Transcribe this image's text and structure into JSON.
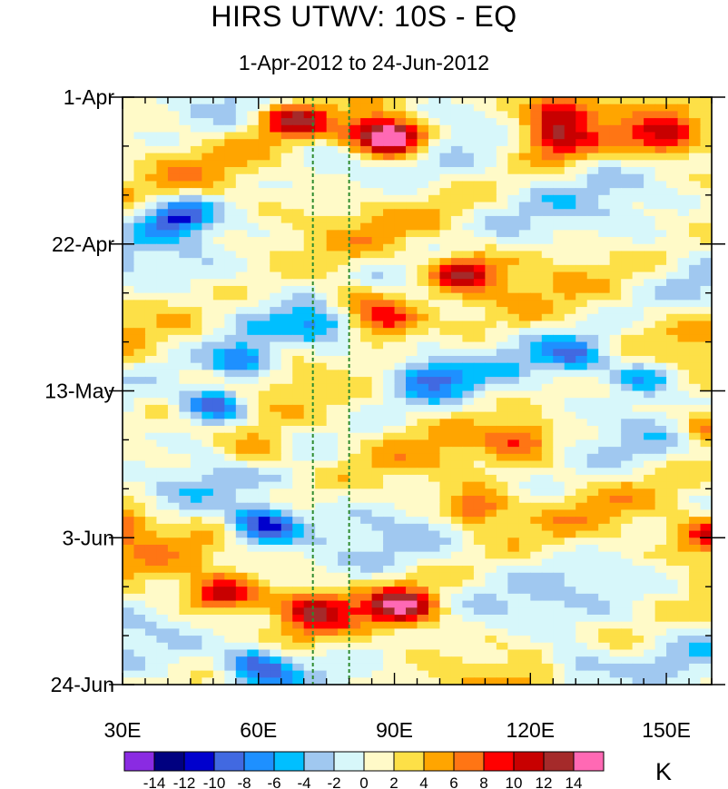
{
  "chart_data": {
    "type": "heatmap",
    "title": "HIRS UTWV: 10S - EQ",
    "subtitle": "1-Apr-2012 to 24-Jun-2012",
    "x_axis": {
      "range": [
        30,
        160
      ],
      "ticks": [
        30,
        60,
        90,
        120,
        150
      ],
      "tick_labels": [
        "30E",
        "60E",
        "90E",
        "120E",
        "150E"
      ]
    },
    "y_axis": {
      "range_days": [
        0,
        84
      ],
      "direction": "downward",
      "ticks": [
        0,
        21,
        42,
        63,
        84
      ],
      "tick_labels": [
        "1-Apr",
        "22-Apr",
        "13-May",
        "3-Jun",
        "24-Jun"
      ]
    },
    "reference_lines": [
      {
        "x": 72,
        "style": "dashed",
        "color": "#2e8b2e"
      },
      {
        "x": 80,
        "style": "dashed",
        "color": "#2e8b2e"
      }
    ],
    "colorbar": {
      "unit": "K",
      "levels": [
        -14,
        -12,
        -10,
        -8,
        -6,
        -4,
        -2,
        0,
        2,
        4,
        6,
        8,
        10,
        12,
        14
      ],
      "label_text": [
        "-14",
        "-12",
        "-10",
        "-8",
        "-6",
        "-4",
        "-2",
        "0",
        "2",
        "4",
        "6",
        "8",
        "10",
        "12",
        "14"
      ],
      "colors": [
        "#8a2be2",
        "#000080",
        "#0000cd",
        "#4169e1",
        "#1e90ff",
        "#00bfff",
        "#a0c8f0",
        "#d7f7fa",
        "#fffac8",
        "#fde047",
        "#ffa500",
        "#ff7514",
        "#ff0000",
        "#c80000",
        "#a52a2a",
        "#ff69b4"
      ]
    },
    "anomaly_features": [
      {
        "lon": 68,
        "day": 3,
        "value": 11
      },
      {
        "lon": 90,
        "day": 6,
        "value": 15
      },
      {
        "lon": 85,
        "day": 5,
        "value": 9
      },
      {
        "lon": 127,
        "day": 2,
        "value": 10
      },
      {
        "lon": 150,
        "day": 6,
        "value": 9
      },
      {
        "lon": 125,
        "day": 6,
        "value": 8
      },
      {
        "lon": 105,
        "day": 25,
        "value": 10
      },
      {
        "lon": 80,
        "day": 29,
        "value": 7
      },
      {
        "lon": 88,
        "day": 32,
        "value": 9
      },
      {
        "lon": 60,
        "day": 51,
        "value": 6
      },
      {
        "lon": 118,
        "day": 49,
        "value": 7
      },
      {
        "lon": 160,
        "day": 47,
        "value": 9
      },
      {
        "lon": 30,
        "day": 61,
        "value": 9
      },
      {
        "lon": 108,
        "day": 59,
        "value": 9
      },
      {
        "lon": 160,
        "day": 63,
        "value": 9
      },
      {
        "lon": 52,
        "day": 71,
        "value": 10
      },
      {
        "lon": 72,
        "day": 73,
        "value": 9
      },
      {
        "lon": 92,
        "day": 73,
        "value": 12
      },
      {
        "lon": 42,
        "day": 17,
        "value": -10
      },
      {
        "lon": 50,
        "day": 44,
        "value": -12
      },
      {
        "lon": 61,
        "day": 61,
        "value": -13
      },
      {
        "lon": 60,
        "day": 81,
        "value": -11
      },
      {
        "lon": 130,
        "day": 37,
        "value": -8
      },
      {
        "lon": 98,
        "day": 40,
        "value": -7
      },
      {
        "lon": 74,
        "day": 33,
        "value": -6
      },
      {
        "lon": 130,
        "day": 81,
        "value": -7
      },
      {
        "lon": 57,
        "day": 38,
        "value": -9
      },
      {
        "lon": 145,
        "day": 40,
        "value": -7
      }
    ]
  }
}
